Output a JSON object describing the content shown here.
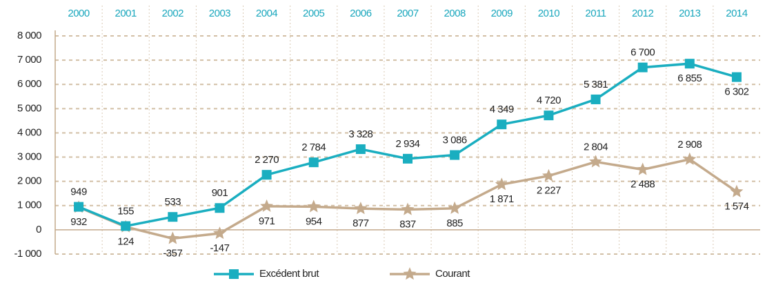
{
  "chart_data": {
    "type": "line",
    "categories": [
      "2000",
      "2001",
      "2002",
      "2003",
      "2004",
      "2005",
      "2006",
      "2007",
      "2008",
      "2009",
      "2010",
      "2011",
      "2012",
      "2013",
      "2014"
    ],
    "series": [
      {
        "name": "Excédent brut",
        "color": "#1aaec0",
        "values": [
          949,
          155,
          533,
          901,
          2270,
          2784,
          3328,
          2934,
          3086,
          4349,
          4720,
          5381,
          6700,
          6855,
          6302
        ],
        "value_labels": [
          "949",
          "155",
          "533",
          "901",
          "2 270",
          "2 784",
          "3 328",
          "2 934",
          "3 086",
          "4 349",
          "4 720",
          "5 381",
          "6 700",
          "6 855",
          "6 302"
        ]
      },
      {
        "name": "Courant",
        "color": "#c4aa8c",
        "values": [
          932,
          124,
          -357,
          -147,
          971,
          954,
          877,
          837,
          885,
          1871,
          2227,
          2804,
          2488,
          2908,
          1574
        ],
        "value_labels": [
          "932",
          "124",
          "-357",
          "-147",
          "971",
          "954",
          "877",
          "837",
          "885",
          "1 871",
          "2 227",
          "2 804",
          "2 488",
          "2 908",
          "1 574"
        ]
      }
    ],
    "ylim": [
      -1000,
      8000
    ],
    "yticks": [
      {
        "value": -1000,
        "label": "-1 000"
      },
      0,
      {
        "value": 1000,
        "label": "1 000"
      },
      {
        "value": 2000,
        "label": "2 000"
      },
      {
        "value": 3000,
        "label": "3 000"
      },
      {
        "value": 4000,
        "label": "4 000"
      },
      {
        "value": 5000,
        "label": "5 000"
      },
      {
        "value": 6000,
        "label": "6 000"
      },
      {
        "value": 7000,
        "label": "7 000"
      },
      {
        "value": 8000,
        "label": "8 000"
      }
    ],
    "grid": true,
    "legend": "bottom"
  }
}
